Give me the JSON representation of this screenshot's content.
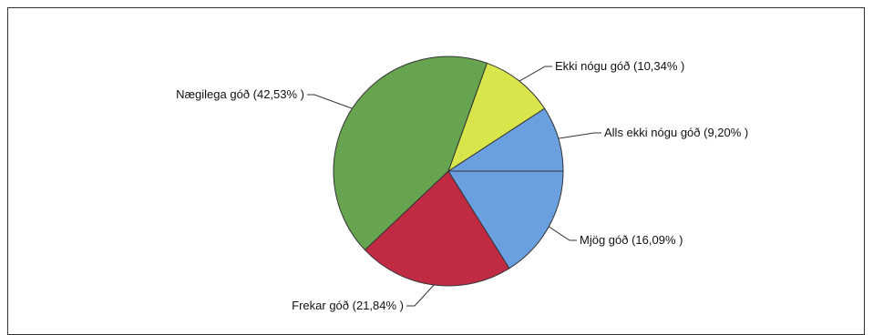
{
  "chart_data": {
    "type": "pie",
    "title": "",
    "slices": [
      {
        "label": "Alls ekki nógu góð (9,20% )",
        "value": 9.2,
        "color": "#6a9fe0"
      },
      {
        "label": "Ekki nógu góð (10,34% )",
        "value": 10.34,
        "color": "#d9e64b"
      },
      {
        "label": "Nægilega góð (42,53% )",
        "value": 42.53,
        "color": "#66a44f"
      },
      {
        "label": "Frekar góð (21,84% )",
        "value": 21.84,
        "color": "#c02b43"
      },
      {
        "label": "Mjög góð (16,09% )",
        "value": 16.09,
        "color": "#6a9fe0"
      }
    ],
    "start_angle_deg": 0,
    "direction": "counterclockwise",
    "legend": "none"
  }
}
